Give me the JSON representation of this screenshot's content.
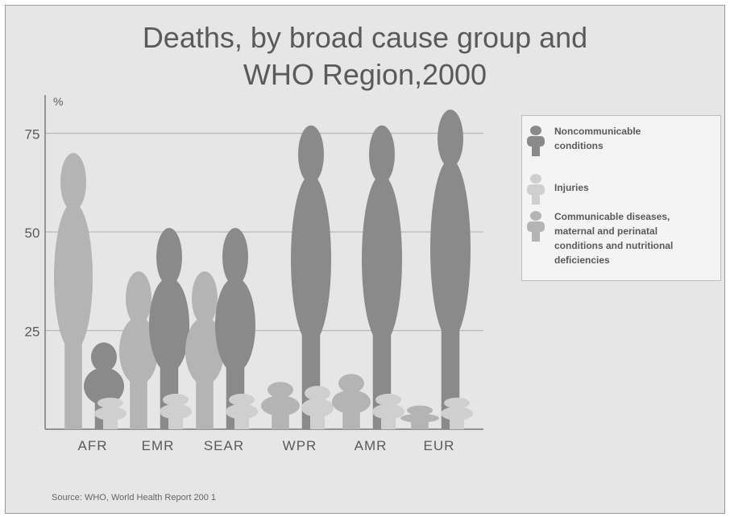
{
  "chart_data": {
    "type": "bar",
    "title": "Deaths, by broad cause group and WHO Region,2000",
    "title_lines": [
      "Deaths, by broad cause group and",
      "WHO Region,2000"
    ],
    "ylabel": "%",
    "ylim": [
      0,
      80
    ],
    "yticks": [
      25,
      50,
      75
    ],
    "categories": [
      "AFR",
      "EMR",
      "SEAR",
      "WPR",
      "AMR",
      "EUR"
    ],
    "series": [
      {
        "name": "Noncommunicable conditions",
        "color": "#8a8a8a",
        "values": [
          22,
          51,
          51,
          77,
          77,
          81
        ]
      },
      {
        "name": "Injuries",
        "color": "#cfcfcf",
        "values": [
          8,
          9,
          9,
          11,
          9,
          8
        ]
      },
      {
        "name": "Communicable diseases, maternal and perinatal conditions and nutritional deficiencies",
        "color": "#b4b4b4",
        "values": [
          70,
          40,
          40,
          12,
          14,
          6
        ]
      }
    ],
    "grid": true,
    "legend_position": "right"
  },
  "legend": {
    "items": [
      {
        "label_lines": [
          "Noncommunicable",
          "conditions"
        ],
        "icon": "person-icon",
        "color": "#8a8a8a"
      },
      {
        "label_lines": [
          "Injuries"
        ],
        "icon": "person-icon",
        "color": "#cfcfcf"
      },
      {
        "label_lines": [
          "Communicable diseases,",
          "maternal and perinatal",
          "conditions and nutritional",
          "deficiencies"
        ],
        "icon": "person-icon",
        "color": "#b4b4b4"
      }
    ]
  },
  "source": "Source:  WHO, World Health Report 200 1",
  "colors": {
    "background": "#e6e6e6",
    "text": "#5a5a5a",
    "axis": "#7a7a7a",
    "grid": "#b8b8b8"
  }
}
